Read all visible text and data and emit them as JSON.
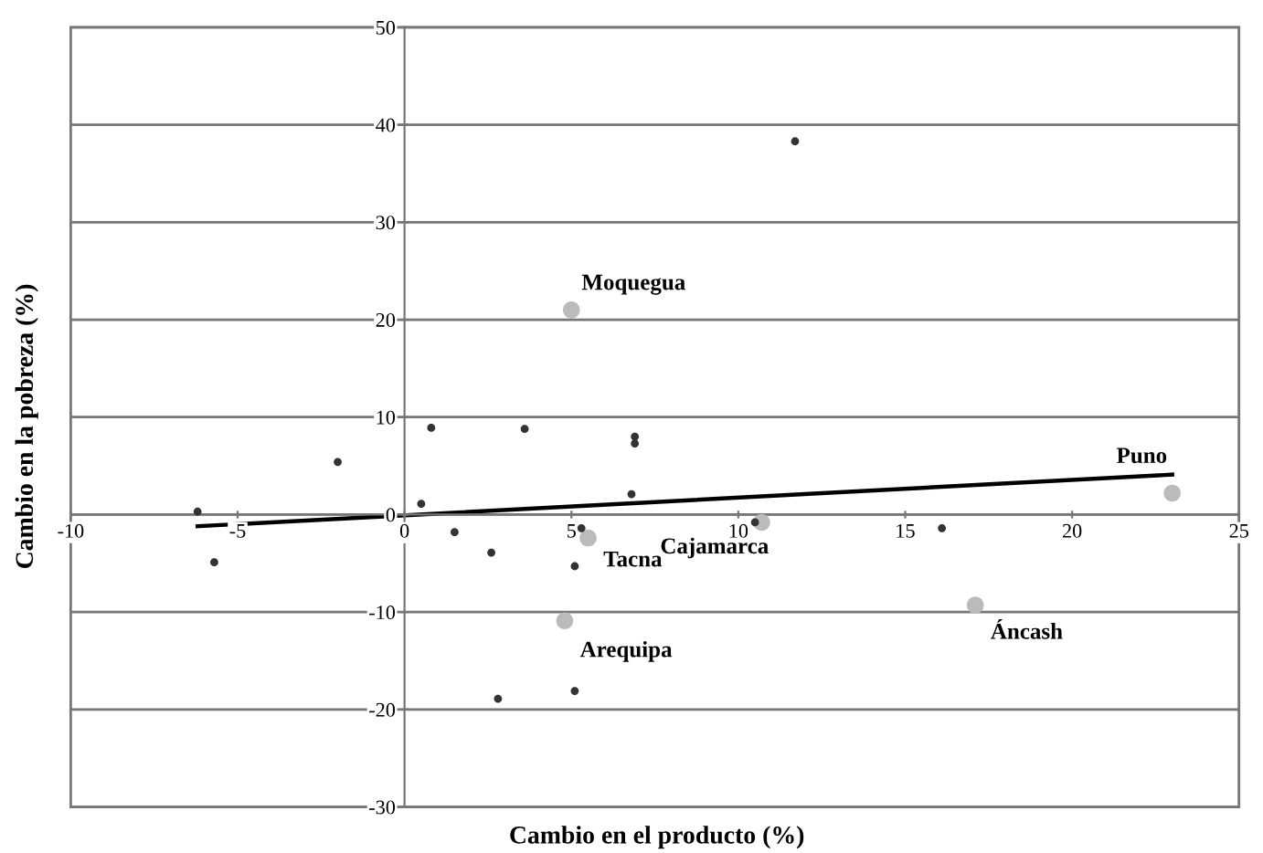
{
  "chart_data": {
    "type": "scatter",
    "xlabel": "Cambio en el producto (%)",
    "ylabel": "Cambio en la pobreza (%)",
    "xlim": [
      -10,
      25
    ],
    "ylim": [
      -30,
      50
    ],
    "xticks": [
      -10,
      -5,
      0,
      5,
      10,
      15,
      20,
      25
    ],
    "yticks": [
      -30,
      -20,
      -10,
      0,
      10,
      20,
      30,
      40,
      50
    ],
    "grid": "y",
    "series": [
      {
        "color": "#333333",
        "x": [
          -6.2,
          -5.7,
          -2.0,
          0.5,
          0.8,
          1.5,
          2.6,
          3.6,
          5.3,
          5.1,
          6.8,
          6.9,
          6.9,
          2.8,
          5.1,
          11.7,
          10.5,
          16.1
        ],
        "values": [
          0.3,
          -4.9,
          5.4,
          1.1,
          8.9,
          -1.8,
          -3.9,
          8.8,
          -1.4,
          -5.3,
          2.1,
          8.0,
          7.3,
          -18.9,
          -18.1,
          38.3,
          -0.8,
          -1.4
        ]
      },
      {
        "color": "#bbbbbb",
        "x": [
          5.0,
          5.5,
          4.8,
          10.7,
          17.1,
          23.0
        ],
        "values": [
          21.0,
          -2.4,
          -10.9,
          -0.8,
          -9.3,
          2.2
        ]
      },
      {
        "type": "line",
        "color": "#000000",
        "x": [
          -6.2,
          23.0
        ],
        "values": [
          -1.2,
          4.1
        ]
      }
    ],
    "annotations": [
      {
        "text": "Moquegua",
        "x": 5.0,
        "y": 21.0
      },
      {
        "text": "Tacna",
        "x": 5.5,
        "y": -2.4
      },
      {
        "text": "Arequipa",
        "x": 4.8,
        "y": -10.9
      },
      {
        "text": "Cajamarca",
        "x": 10.7,
        "y": -0.8
      },
      {
        "text": "Áncash",
        "x": 17.1,
        "y": -9.3
      },
      {
        "text": "Puno",
        "x": 23.0,
        "y": 2.2
      }
    ]
  }
}
